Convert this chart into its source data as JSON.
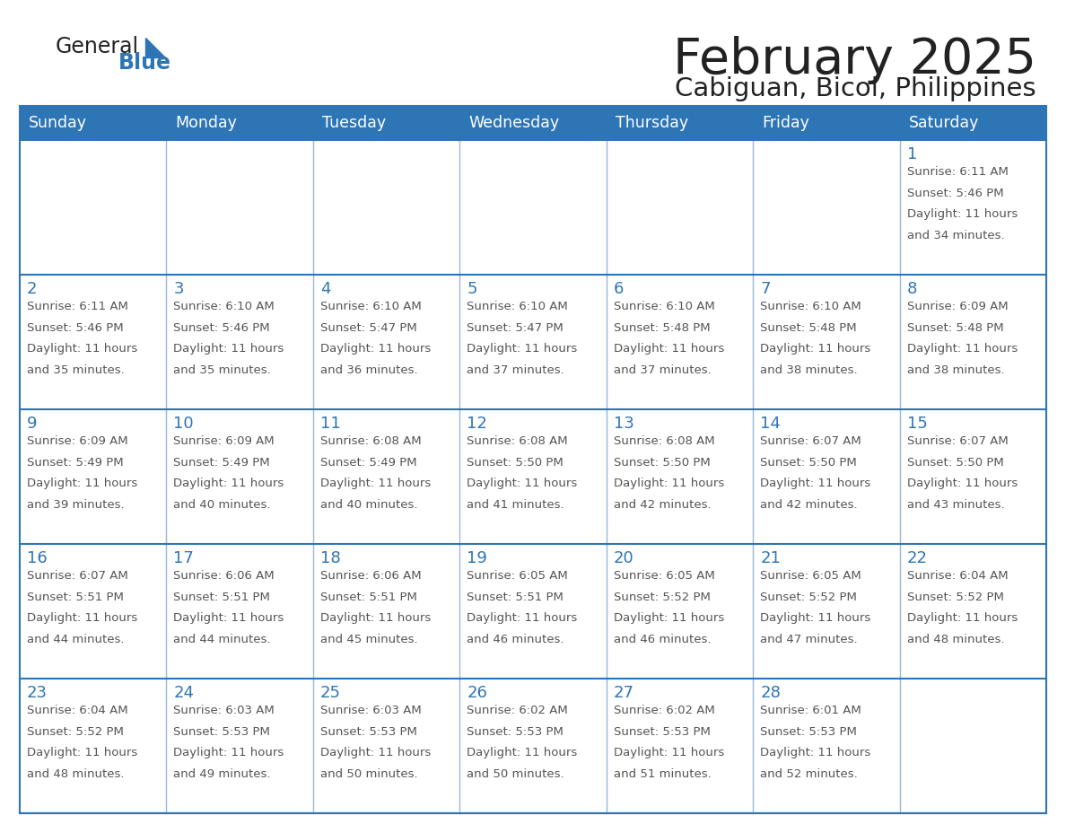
{
  "title": "February 2025",
  "subtitle": "Cabiguan, Bicol, Philippines",
  "header_bg": "#2e75b6",
  "header_text_color": "#ffffff",
  "cell_border_color": "#2e75b6",
  "day_number_color": "#2e75b6",
  "info_text_color": "#555555",
  "background_color": "#ffffff",
  "days_of_week": [
    "Sunday",
    "Monday",
    "Tuesday",
    "Wednesday",
    "Thursday",
    "Friday",
    "Saturday"
  ],
  "calendar_data": [
    [
      null,
      null,
      null,
      null,
      null,
      null,
      {
        "day": 1,
        "sunrise": "6:11 AM",
        "sunset": "5:46 PM",
        "daylight": "11 hours and 34 minutes."
      }
    ],
    [
      {
        "day": 2,
        "sunrise": "6:11 AM",
        "sunset": "5:46 PM",
        "daylight": "11 hours and 35 minutes."
      },
      {
        "day": 3,
        "sunrise": "6:10 AM",
        "sunset": "5:46 PM",
        "daylight": "11 hours and 35 minutes."
      },
      {
        "day": 4,
        "sunrise": "6:10 AM",
        "sunset": "5:47 PM",
        "daylight": "11 hours and 36 minutes."
      },
      {
        "day": 5,
        "sunrise": "6:10 AM",
        "sunset": "5:47 PM",
        "daylight": "11 hours and 37 minutes."
      },
      {
        "day": 6,
        "sunrise": "6:10 AM",
        "sunset": "5:48 PM",
        "daylight": "11 hours and 37 minutes."
      },
      {
        "day": 7,
        "sunrise": "6:10 AM",
        "sunset": "5:48 PM",
        "daylight": "11 hours and 38 minutes."
      },
      {
        "day": 8,
        "sunrise": "6:09 AM",
        "sunset": "5:48 PM",
        "daylight": "11 hours and 38 minutes."
      }
    ],
    [
      {
        "day": 9,
        "sunrise": "6:09 AM",
        "sunset": "5:49 PM",
        "daylight": "11 hours and 39 minutes."
      },
      {
        "day": 10,
        "sunrise": "6:09 AM",
        "sunset": "5:49 PM",
        "daylight": "11 hours and 40 minutes."
      },
      {
        "day": 11,
        "sunrise": "6:08 AM",
        "sunset": "5:49 PM",
        "daylight": "11 hours and 40 minutes."
      },
      {
        "day": 12,
        "sunrise": "6:08 AM",
        "sunset": "5:50 PM",
        "daylight": "11 hours and 41 minutes."
      },
      {
        "day": 13,
        "sunrise": "6:08 AM",
        "sunset": "5:50 PM",
        "daylight": "11 hours and 42 minutes."
      },
      {
        "day": 14,
        "sunrise": "6:07 AM",
        "sunset": "5:50 PM",
        "daylight": "11 hours and 42 minutes."
      },
      {
        "day": 15,
        "sunrise": "6:07 AM",
        "sunset": "5:50 PM",
        "daylight": "11 hours and 43 minutes."
      }
    ],
    [
      {
        "day": 16,
        "sunrise": "6:07 AM",
        "sunset": "5:51 PM",
        "daylight": "11 hours and 44 minutes."
      },
      {
        "day": 17,
        "sunrise": "6:06 AM",
        "sunset": "5:51 PM",
        "daylight": "11 hours and 44 minutes."
      },
      {
        "day": 18,
        "sunrise": "6:06 AM",
        "sunset": "5:51 PM",
        "daylight": "11 hours and 45 minutes."
      },
      {
        "day": 19,
        "sunrise": "6:05 AM",
        "sunset": "5:51 PM",
        "daylight": "11 hours and 46 minutes."
      },
      {
        "day": 20,
        "sunrise": "6:05 AM",
        "sunset": "5:52 PM",
        "daylight": "11 hours and 46 minutes."
      },
      {
        "day": 21,
        "sunrise": "6:05 AM",
        "sunset": "5:52 PM",
        "daylight": "11 hours and 47 minutes."
      },
      {
        "day": 22,
        "sunrise": "6:04 AM",
        "sunset": "5:52 PM",
        "daylight": "11 hours and 48 minutes."
      }
    ],
    [
      {
        "day": 23,
        "sunrise": "6:04 AM",
        "sunset": "5:52 PM",
        "daylight": "11 hours and 48 minutes."
      },
      {
        "day": 24,
        "sunrise": "6:03 AM",
        "sunset": "5:53 PM",
        "daylight": "11 hours and 49 minutes."
      },
      {
        "day": 25,
        "sunrise": "6:03 AM",
        "sunset": "5:53 PM",
        "daylight": "11 hours and 50 minutes."
      },
      {
        "day": 26,
        "sunrise": "6:02 AM",
        "sunset": "5:53 PM",
        "daylight": "11 hours and 50 minutes."
      },
      {
        "day": 27,
        "sunrise": "6:02 AM",
        "sunset": "5:53 PM",
        "daylight": "11 hours and 51 minutes."
      },
      {
        "day": 28,
        "sunrise": "6:01 AM",
        "sunset": "5:53 PM",
        "daylight": "11 hours and 52 minutes."
      },
      null
    ]
  ]
}
